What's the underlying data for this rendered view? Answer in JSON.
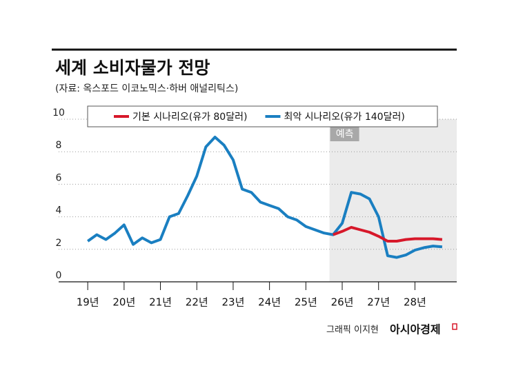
{
  "chart_data": {
    "type": "line",
    "title": "세계 소비자물가 전망",
    "subtitle": "(자료: 옥스포드 이코노믹스·하버 애널리틱스)",
    "x": [
      19,
      19.25,
      19.5,
      19.75,
      20,
      20.25,
      20.5,
      20.75,
      21,
      21.25,
      21.5,
      21.75,
      22,
      22.25,
      22.5,
      22.75,
      23,
      23.25,
      23.5,
      23.75,
      24,
      24.25,
      24.5,
      24.75,
      25,
      25.25,
      25.5,
      25.75,
      26,
      26.25,
      26.5,
      26.75,
      27,
      27.25,
      27.5,
      27.75,
      28,
      28.25,
      28.5,
      28.75
    ],
    "series": [
      {
        "name": "기본 시나리오(유가 80달러)",
        "color": "#d7182a",
        "values": [
          null,
          null,
          null,
          null,
          null,
          null,
          null,
          null,
          null,
          null,
          null,
          null,
          null,
          null,
          null,
          null,
          null,
          null,
          null,
          null,
          null,
          null,
          null,
          null,
          null,
          null,
          null,
          2.9,
          3.1,
          3.35,
          3.2,
          3.05,
          2.8,
          2.5,
          2.5,
          2.6,
          2.65,
          2.65,
          2.65,
          2.6
        ]
      },
      {
        "name": "최악 시나리오(유가 140달러)",
        "color": "#1a7fc1",
        "values": [
          2.5,
          2.9,
          2.6,
          3.0,
          3.5,
          2.3,
          2.7,
          2.4,
          2.6,
          4.0,
          4.2,
          5.3,
          6.5,
          8.3,
          8.9,
          8.4,
          7.5,
          5.7,
          5.5,
          4.9,
          4.7,
          4.5,
          4.0,
          3.8,
          3.4,
          3.2,
          3.0,
          2.9,
          3.6,
          5.5,
          5.4,
          5.1,
          4.0,
          1.6,
          1.5,
          1.65,
          1.95,
          2.1,
          2.2,
          2.15
        ]
      }
    ],
    "xlim": [
      18.2,
      29.15
    ],
    "xticks": [
      {
        "value": 19,
        "label": "19년"
      },
      {
        "value": 20,
        "label": "20년"
      },
      {
        "value": 21,
        "label": "21년"
      },
      {
        "value": 22,
        "label": "22년"
      },
      {
        "value": 23,
        "label": "23년"
      },
      {
        "value": 24,
        "label": "24년"
      },
      {
        "value": 25,
        "label": "25년"
      },
      {
        "value": 26,
        "label": "26년"
      },
      {
        "value": 27,
        "label": "27년"
      },
      {
        "value": 28,
        "label": "28년"
      }
    ],
    "ylim": [
      0,
      10
    ],
    "yticks": [
      0,
      2,
      4,
      6,
      8,
      10
    ],
    "grid": true,
    "forecast": {
      "label": "예측",
      "start": 25.65
    },
    "credit": {
      "author": "그래픽 이지현",
      "outlet": "아시아경제"
    }
  }
}
